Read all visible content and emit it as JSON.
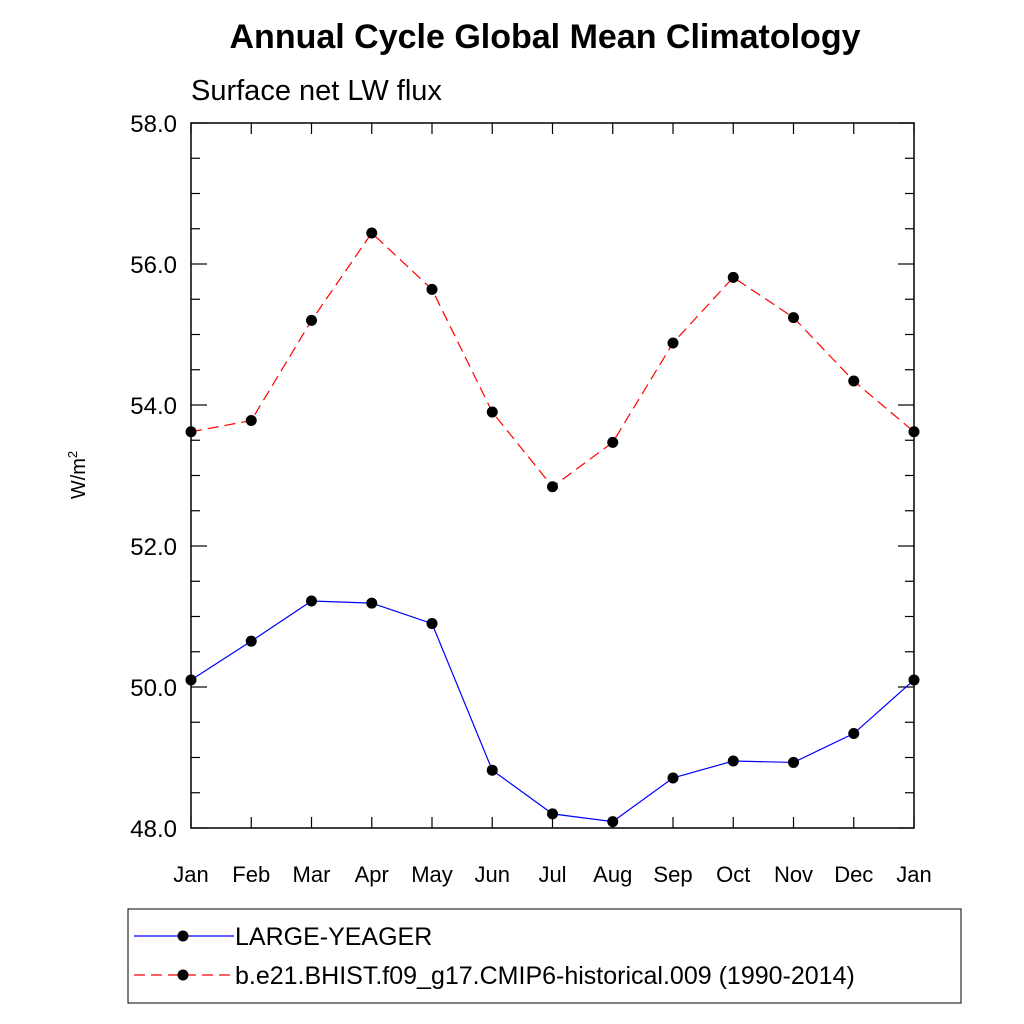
{
  "chart_data": {
    "type": "line",
    "title": "Annual Cycle Global Mean Climatology",
    "subtitle": "Surface net LW flux",
    "ylabel": "W/m",
    "ylabel_sup": "2",
    "xlabel": "",
    "categories": [
      "Jan",
      "Feb",
      "Mar",
      "Apr",
      "May",
      "Jun",
      "Jul",
      "Aug",
      "Sep",
      "Oct",
      "Nov",
      "Dec",
      "Jan"
    ],
    "ylim": [
      48.0,
      58.0
    ],
    "yticks": [
      "48.0",
      "50.0",
      "52.0",
      "54.0",
      "56.0",
      "58.0"
    ],
    "grid": false,
    "legend_position": "bottom",
    "series": [
      {
        "name": "LARGE-YEAGER",
        "color": "#0000ff",
        "style": "solid",
        "values": [
          50.1,
          50.65,
          51.22,
          51.19,
          50.9,
          48.82,
          48.2,
          48.09,
          48.71,
          48.95,
          48.93,
          49.34,
          50.1
        ]
      },
      {
        "name": "b.e21.BHIST.f09_g17.CMIP6-historical.009 (1990-2014)",
        "color": "#ff0000",
        "style": "dashed",
        "values": [
          53.62,
          53.78,
          55.2,
          56.44,
          55.64,
          53.9,
          52.84,
          53.47,
          54.88,
          55.81,
          55.24,
          54.34,
          53.62
        ]
      }
    ]
  }
}
